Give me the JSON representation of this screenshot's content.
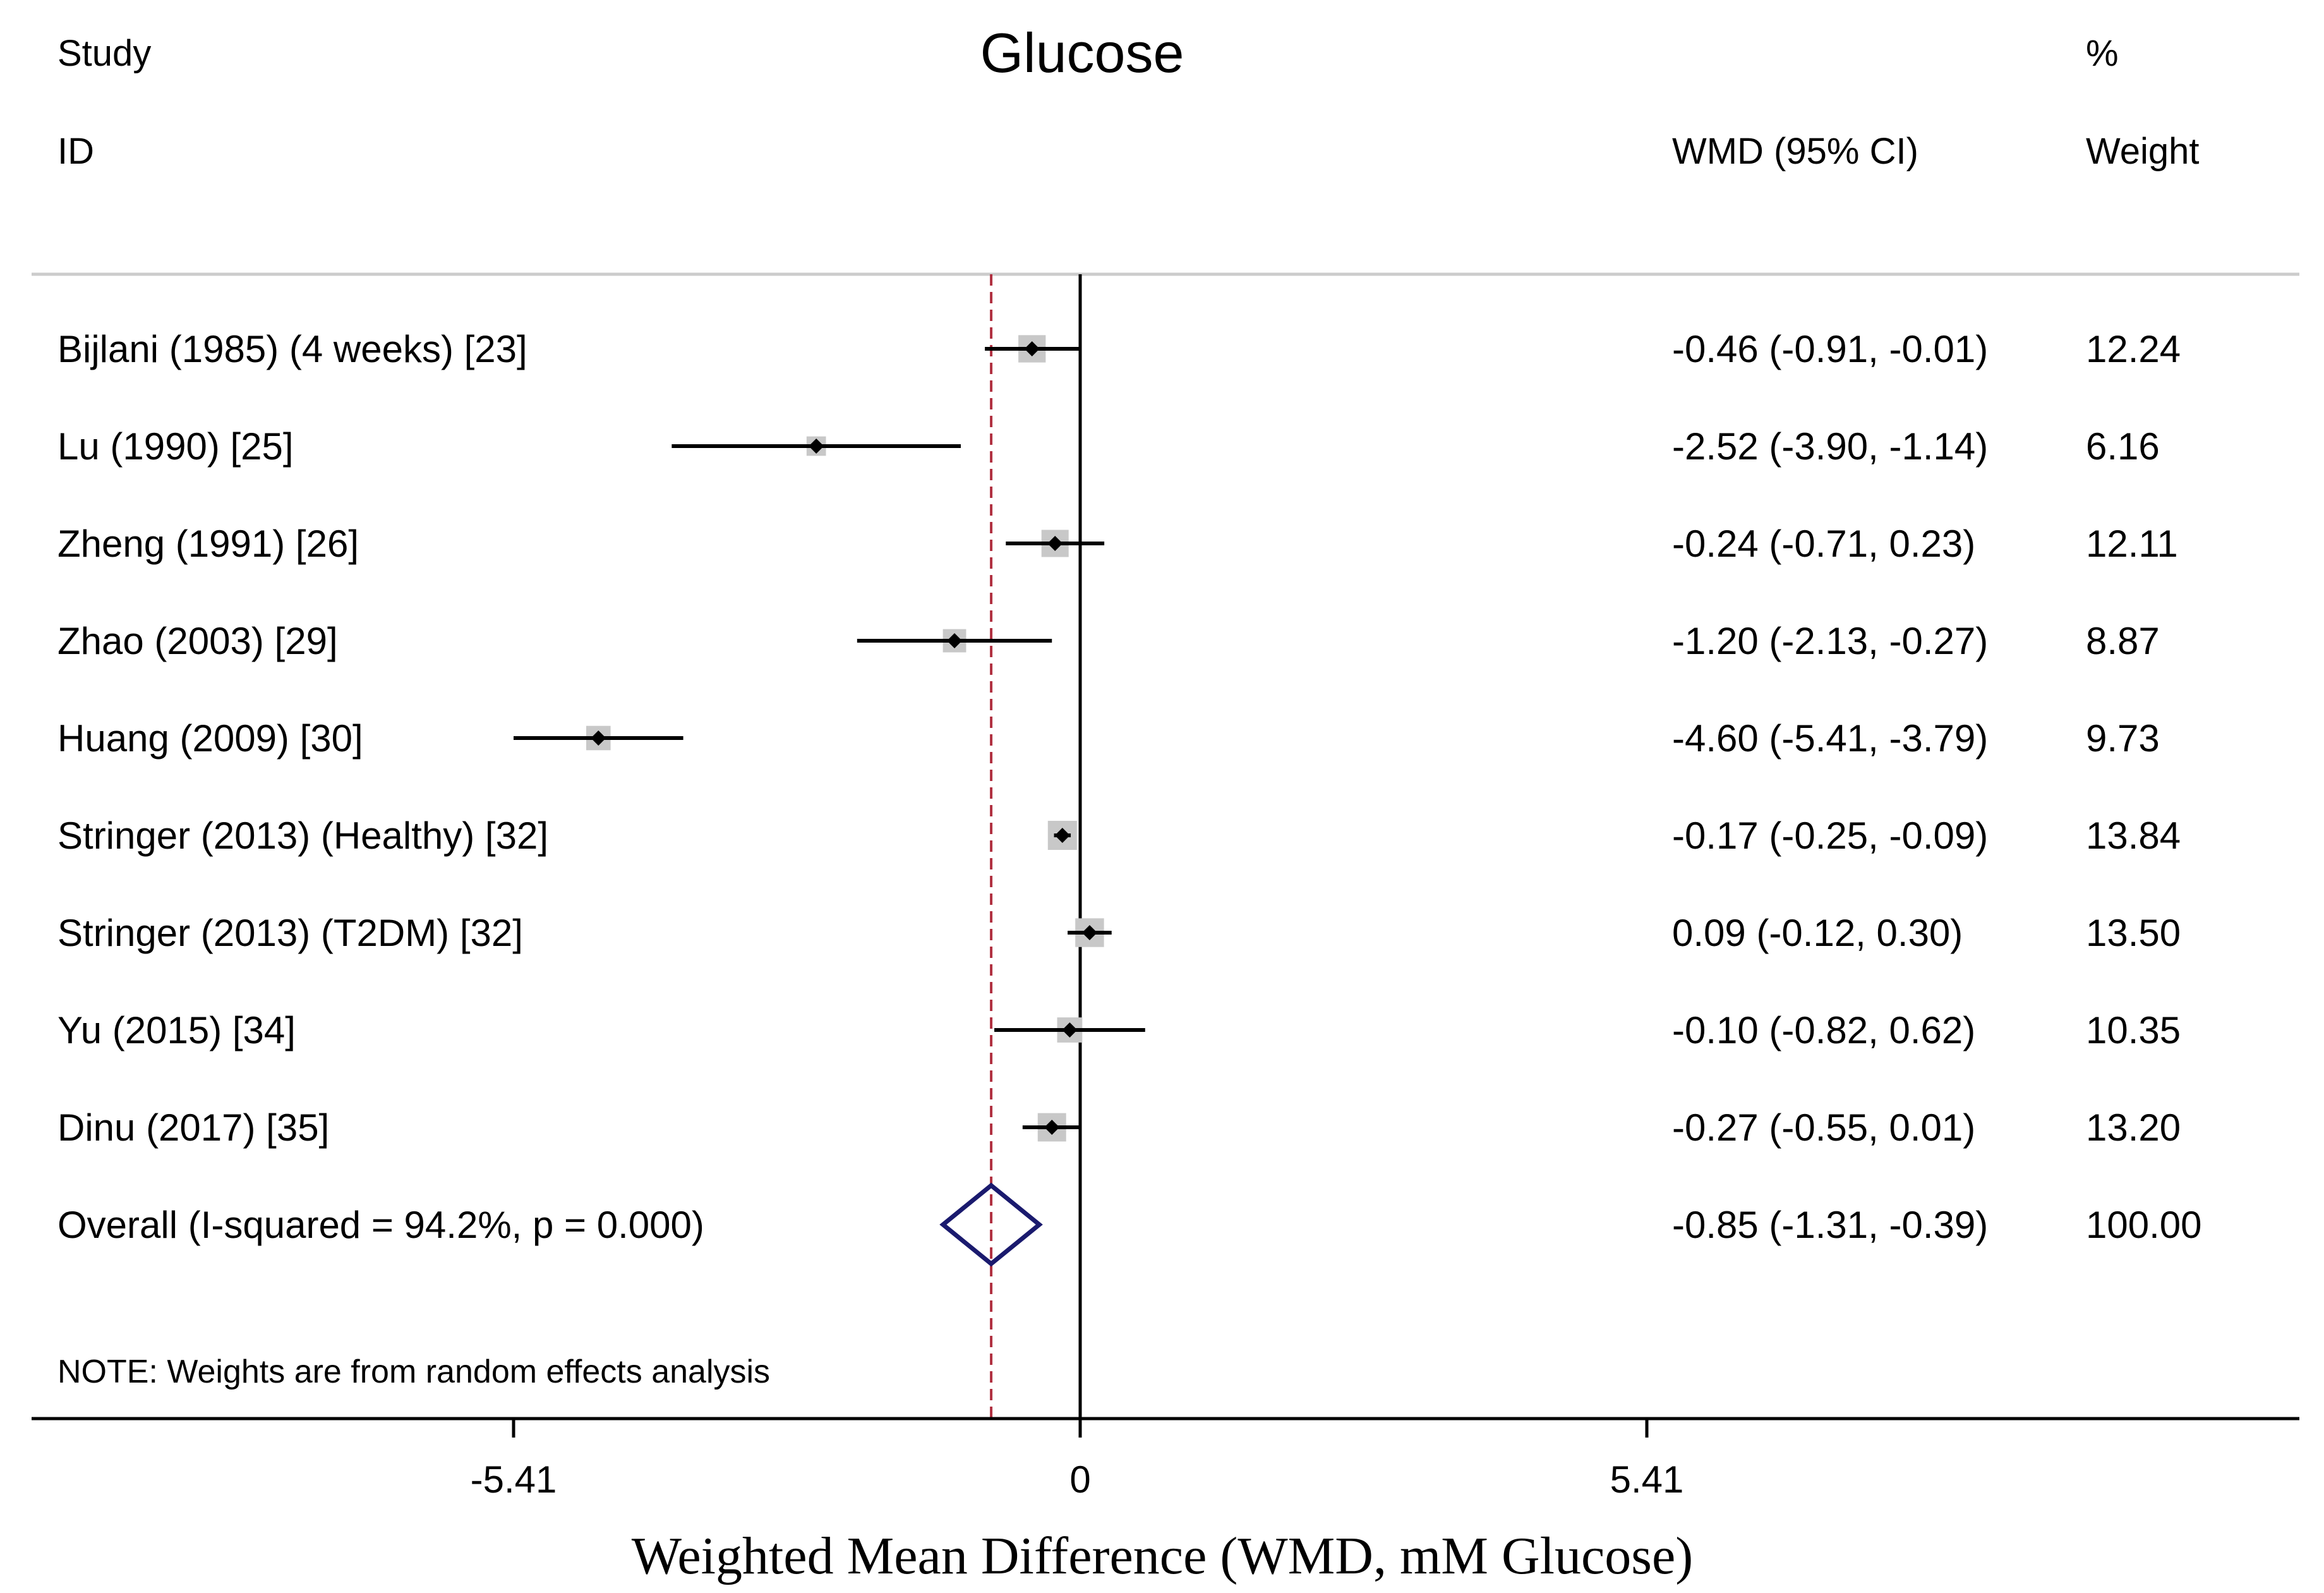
{
  "chart_data": {
    "type": "forest",
    "title": "Glucose",
    "headers": {
      "study_line1": "Study",
      "study_line2": "ID",
      "effect": "WMD (95% CI)",
      "weight_line1": "%",
      "weight_line2": "Weight"
    },
    "studies": [
      {
        "label": "Bijlani (1985) (4 weeks) [23]",
        "est": -0.46,
        "lo": -0.91,
        "hi": -0.01,
        "ci_text": "-0.46 (-0.91, -0.01)",
        "weight": 12.24,
        "weight_text": "12.24"
      },
      {
        "label": "Lu (1990) [25]",
        "est": -2.52,
        "lo": -3.9,
        "hi": -1.14,
        "ci_text": "-2.52 (-3.90, -1.14)",
        "weight": 6.16,
        "weight_text": "6.16"
      },
      {
        "label": "Zheng (1991) [26]",
        "est": -0.24,
        "lo": -0.71,
        "hi": 0.23,
        "ci_text": "-0.24 (-0.71, 0.23)",
        "weight": 12.11,
        "weight_text": "12.11"
      },
      {
        "label": "Zhao (2003) [29]",
        "est": -1.2,
        "lo": -2.13,
        "hi": -0.27,
        "ci_text": "-1.20 (-2.13, -0.27)",
        "weight": 8.87,
        "weight_text": "8.87"
      },
      {
        "label": "Huang (2009) [30]",
        "est": -4.6,
        "lo": -5.41,
        "hi": -3.79,
        "ci_text": "-4.60 (-5.41, -3.79)",
        "weight": 9.73,
        "weight_text": "9.73"
      },
      {
        "label": "Stringer (2013) (Healthy) [32]",
        "est": -0.17,
        "lo": -0.25,
        "hi": -0.09,
        "ci_text": "-0.17 (-0.25, -0.09)",
        "weight": 13.84,
        "weight_text": "13.84"
      },
      {
        "label": "Stringer (2013) (T2DM) [32]",
        "est": 0.09,
        "lo": -0.12,
        "hi": 0.3,
        "ci_text": "0.09 (-0.12, 0.30)",
        "weight": 13.5,
        "weight_text": "13.50"
      },
      {
        "label": "Yu (2015) [34]",
        "est": -0.1,
        "lo": -0.82,
        "hi": 0.62,
        "ci_text": "-0.10 (-0.82, 0.62)",
        "weight": 10.35,
        "weight_text": "10.35"
      },
      {
        "label": "Dinu (2017) [35]",
        "est": -0.27,
        "lo": -0.55,
        "hi": 0.01,
        "ci_text": "-0.27 (-0.55, 0.01)",
        "weight": 13.2,
        "weight_text": "13.20"
      }
    ],
    "overall": {
      "label": "Overall  (I-squared = 94.2%, p = 0.000)",
      "est": -0.85,
      "lo": -1.31,
      "hi": -0.39,
      "ci_text": "-0.85 (-1.31, -0.39)",
      "weight": 100.0,
      "weight_text": "100.00"
    },
    "note": "NOTE: Weights are from random effects analysis",
    "xlim": [
      -10.0,
      11.72
    ],
    "xticks": [
      -5.41,
      0,
      5.41
    ],
    "xtick_labels": [
      "-5.41",
      "0",
      "5.41"
    ],
    "xlabel": "Weighted Mean Difference (WMD, mM Glucose)",
    "null_line": 0,
    "colors": {
      "text": "#000000",
      "ci_line": "#000000",
      "weight_box": "#c8c8c8",
      "diamond": "#1a1a6e",
      "overall_line": "#b03040",
      "separator": "#cccccc"
    }
  }
}
